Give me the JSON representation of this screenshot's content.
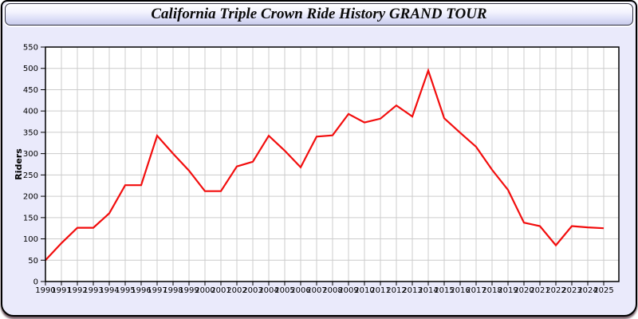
{
  "header": {
    "title": "California Triple Crown Ride History GRAND TOUR"
  },
  "colors": {
    "line": "#f20d0d",
    "grid": "#cccccc",
    "axis": "#000000",
    "plot_bg": "#ffffff",
    "panel_bg": "#eaeafb",
    "tick_label": "#101020"
  },
  "chart_data": {
    "type": "line",
    "title": "California Triple Crown Ride History GRAND TOUR",
    "xlabel": "",
    "ylabel": "Riders",
    "ylim": [
      0,
      550
    ],
    "ytick_step": 50,
    "grid": true,
    "legend": "none",
    "x": [
      1990,
      1991,
      1992,
      1993,
      1994,
      1995,
      1996,
      1997,
      1998,
      1999,
      2000,
      2001,
      2002,
      2003,
      2004,
      2005,
      2006,
      2007,
      2008,
      2009,
      2010,
      2011,
      2012,
      2013,
      2014,
      2015,
      2016,
      2017,
      2018,
      2019,
      2020,
      2021,
      2022,
      2023,
      2024,
      2025
    ],
    "values": [
      50,
      90,
      126,
      126,
      160,
      226,
      226,
      342,
      300,
      260,
      212,
      212,
      270,
      281,
      342,
      307,
      268,
      340,
      343,
      393,
      373,
      382,
      413,
      387,
      495,
      383,
      349,
      316,
      262,
      215,
      138,
      130,
      85,
      130,
      127,
      125
    ]
  }
}
